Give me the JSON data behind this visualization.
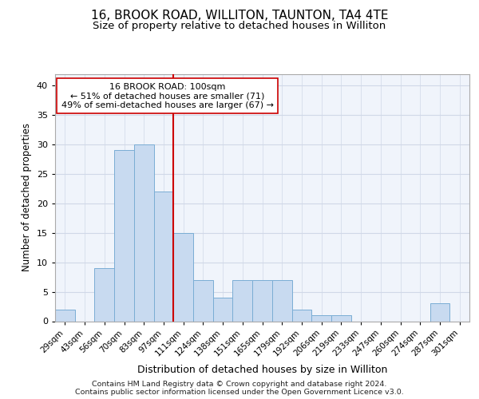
{
  "title1": "16, BROOK ROAD, WILLITON, TAUNTON, TA4 4TE",
  "title2": "Size of property relative to detached houses in Williton",
  "xlabel": "Distribution of detached houses by size in Williton",
  "ylabel": "Number of detached properties",
  "categories": [
    "29sqm",
    "43sqm",
    "56sqm",
    "70sqm",
    "83sqm",
    "97sqm",
    "111sqm",
    "124sqm",
    "138sqm",
    "151sqm",
    "165sqm",
    "179sqm",
    "192sqm",
    "206sqm",
    "219sqm",
    "233sqm",
    "247sqm",
    "260sqm",
    "274sqm",
    "287sqm",
    "301sqm"
  ],
  "values": [
    2,
    0,
    9,
    29,
    30,
    22,
    15,
    7,
    4,
    7,
    7,
    7,
    2,
    1,
    1,
    0,
    0,
    0,
    0,
    3,
    0
  ],
  "bar_color": "#c8daf0",
  "bar_edge_color": "#7aadd4",
  "ref_line_index": 5.5,
  "ref_line_label": "16 BROOK ROAD: 100sqm",
  "annotation_line1": "← 51% of detached houses are smaller (71)",
  "annotation_line2": "49% of semi-detached houses are larger (67) →",
  "ref_line_color": "#cc0000",
  "annotation_box_color": "#ffffff",
  "annotation_box_edge": "#cc0000",
  "ylim": [
    0,
    42
  ],
  "yticks": [
    0,
    5,
    10,
    15,
    20,
    25,
    30,
    35,
    40
  ],
  "footer1": "Contains HM Land Registry data © Crown copyright and database right 2024.",
  "footer2": "Contains public sector information licensed under the Open Government Licence v3.0.",
  "bg_color": "#ffffff",
  "plot_bg_color": "#f0f4fb",
  "grid_color": "#d0d8e8"
}
